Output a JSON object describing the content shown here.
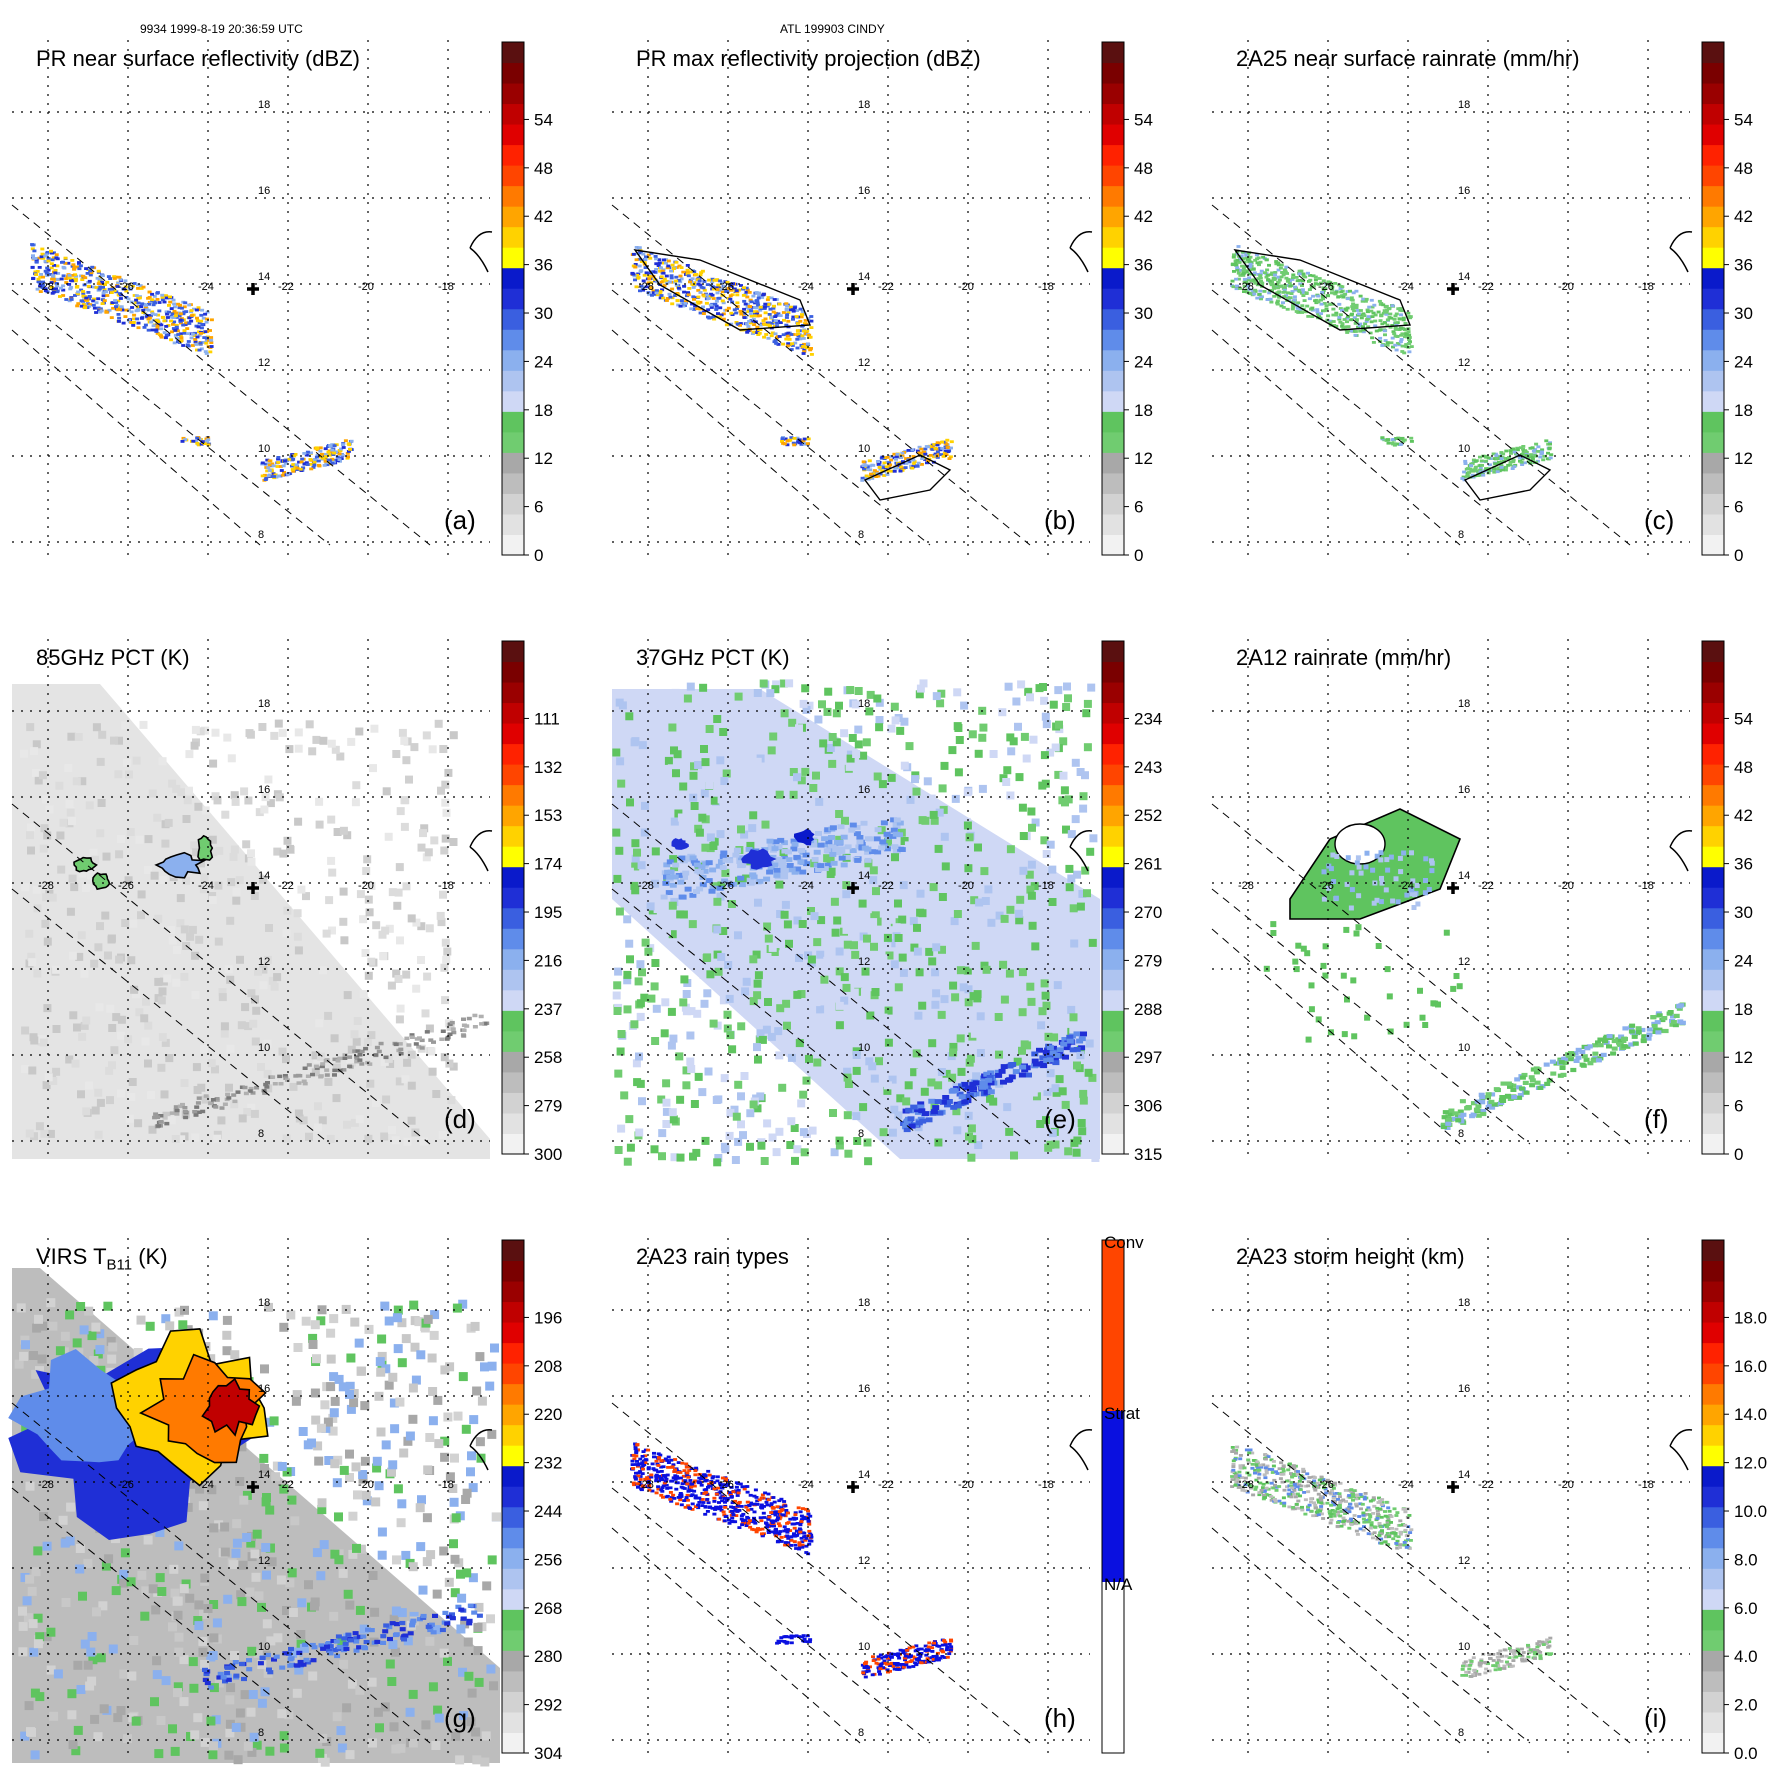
{
  "header": {
    "left": "9934 1999-8-19 20:36:59 UTC",
    "center": "ATL 199903 CINDY"
  },
  "panels": [
    {
      "title": "PR near surface reflectivity (dBZ)",
      "label": "(a)",
      "ticks": [
        "0",
        "6",
        "12",
        "18",
        "24",
        "30",
        "36",
        "42",
        "48",
        "54"
      ]
    },
    {
      "title": "PR max reflectivity projection (dBZ)",
      "label": "(b)",
      "ticks": [
        "0",
        "6",
        "12",
        "18",
        "24",
        "30",
        "36",
        "42",
        "48",
        "54"
      ]
    },
    {
      "title": "2A25 near surface rainrate (mm/hr)",
      "label": "(c)",
      "ticks": [
        "0",
        "6",
        "12",
        "18",
        "24",
        "30",
        "36",
        "42",
        "48",
        "54"
      ]
    },
    {
      "title": "85GHz PCT (K)",
      "label": "(d)",
      "ticks": [
        "300",
        "279",
        "258",
        "237",
        "216",
        "195",
        "174",
        "153",
        "132",
        "111"
      ]
    },
    {
      "title": "37GHz PCT (K)",
      "label": "(e)",
      "ticks": [
        "315",
        "306",
        "297",
        "288",
        "279",
        "270",
        "261",
        "252",
        "243",
        "234"
      ]
    },
    {
      "title": "2A12 rainrate (mm/hr)",
      "label": "(f)",
      "ticks": [
        "0",
        "6",
        "12",
        "18",
        "24",
        "30",
        "36",
        "42",
        "48",
        "54"
      ]
    },
    {
      "title_main": "VIRS T",
      "title_sub": "B11",
      "title_tail": " (K)",
      "label": "(g)",
      "ticks": [
        "304",
        "292",
        "280",
        "268",
        "256",
        "244",
        "232",
        "220",
        "208",
        "196"
      ]
    },
    {
      "title": "2A23 rain types",
      "label": "(h)",
      "ticks": [
        "N/A",
        "Strat",
        "Conv"
      ]
    },
    {
      "title": "2A23 storm height (km)",
      "label": "(i)",
      "ticks": [
        "0.0",
        "2.0",
        "4.0",
        "6.0",
        "8.0",
        "10.0",
        "12.0",
        "14.0",
        "16.0",
        "18.0"
      ]
    }
  ],
  "grid": {
    "lon_labels": [
      "-28",
      "-26",
      "-24",
      "-22",
      "-20",
      "-18"
    ],
    "lat_labels": [
      "8",
      "10",
      "12",
      "14",
      "16",
      "18"
    ]
  },
  "colors": {
    "scale": [
      "#f2f2f2",
      "#e2e2e2",
      "#d2d2d2",
      "#bdbdbd",
      "#a8a8a8",
      "#70cc70",
      "#5fc45f",
      "#cfd8f5",
      "#aec4f0",
      "#8bb0ee",
      "#5f8cea",
      "#3a5fe0",
      "#1f2fd6",
      "#0a1acb",
      "#ffff00",
      "#ffd200",
      "#ffa500",
      "#ff7a00",
      "#ff4500",
      "#ff2200",
      "#e00000",
      "#c00000",
      "#9a0000",
      "#7a0000",
      "#5a1010"
    ],
    "rain_types": [
      "#ffffff",
      "#0a10e0",
      "#ff4500"
    ]
  },
  "chart_data": [
    {
      "type": "heatmap",
      "title": "PR near surface reflectivity (dBZ)",
      "colorbar_ticks": [
        0,
        6,
        12,
        18,
        24,
        30,
        36,
        42,
        48,
        54
      ],
      "x_ticks": [
        -28,
        -26,
        -24,
        -22,
        -20,
        -18
      ],
      "y_ticks": [
        8,
        10,
        12,
        14,
        16,
        18
      ],
      "grid": true
    },
    {
      "type": "heatmap",
      "title": "PR max reflectivity projection (dBZ)",
      "colorbar_ticks": [
        0,
        6,
        12,
        18,
        24,
        30,
        36,
        42,
        48,
        54
      ],
      "x_ticks": [
        -28,
        -26,
        -24,
        -22,
        -20,
        -18
      ],
      "y_ticks": [
        8,
        10,
        12,
        14,
        16,
        18
      ],
      "grid": true
    },
    {
      "type": "heatmap",
      "title": "2A25 near surface rainrate (mm/hr)",
      "colorbar_ticks": [
        0,
        6,
        12,
        18,
        24,
        30,
        36,
        42,
        48,
        54
      ],
      "x_ticks": [
        -28,
        -26,
        -24,
        -22,
        -20,
        -18
      ],
      "y_ticks": [
        8,
        10,
        12,
        14,
        16,
        18
      ],
      "grid": true
    },
    {
      "type": "heatmap",
      "title": "85GHz PCT (K)",
      "colorbar_ticks": [
        300,
        279,
        258,
        237,
        216,
        195,
        174,
        153,
        132,
        111
      ],
      "x_ticks": [
        -28,
        -26,
        -24,
        -22,
        -20,
        -18
      ],
      "y_ticks": [
        8,
        10,
        12,
        14,
        16,
        18
      ],
      "grid": true
    },
    {
      "type": "heatmap",
      "title": "37GHz PCT (K)",
      "colorbar_ticks": [
        315,
        306,
        297,
        288,
        279,
        270,
        261,
        252,
        243,
        234
      ],
      "x_ticks": [
        -28,
        -26,
        -24,
        -22,
        -20,
        -18
      ],
      "y_ticks": [
        8,
        10,
        12,
        14,
        16,
        18
      ],
      "grid": true
    },
    {
      "type": "heatmap",
      "title": "2A12 rainrate (mm/hr)",
      "colorbar_ticks": [
        0,
        6,
        12,
        18,
        24,
        30,
        36,
        42,
        48,
        54
      ],
      "x_ticks": [
        -28,
        -26,
        -24,
        -22,
        -20,
        -18
      ],
      "y_ticks": [
        8,
        10,
        12,
        14,
        16,
        18
      ],
      "grid": true
    },
    {
      "type": "heatmap",
      "title": "VIRS TB11 (K)",
      "colorbar_ticks": [
        304,
        292,
        280,
        268,
        256,
        244,
        232,
        220,
        208,
        196
      ],
      "x_ticks": [
        -28,
        -26,
        -24,
        -22,
        -20,
        -18
      ],
      "y_ticks": [
        8,
        10,
        12,
        14,
        16,
        18
      ],
      "grid": true
    },
    {
      "type": "heatmap",
      "title": "2A23 rain types",
      "colorbar_ticks": [
        "N/A",
        "Strat",
        "Conv"
      ],
      "x_ticks": [
        -28,
        -26,
        -24,
        -22,
        -20,
        -18
      ],
      "y_ticks": [
        8,
        10,
        12,
        14,
        16,
        18
      ],
      "grid": true
    },
    {
      "type": "heatmap",
      "title": "2A23 storm height (km)",
      "colorbar_ticks": [
        0.0,
        2.0,
        4.0,
        6.0,
        8.0,
        10.0,
        12.0,
        14.0,
        16.0,
        18.0
      ],
      "x_ticks": [
        -28,
        -26,
        -24,
        -22,
        -20,
        -18
      ],
      "y_ticks": [
        8,
        10,
        12,
        14,
        16,
        18
      ],
      "grid": true
    }
  ]
}
